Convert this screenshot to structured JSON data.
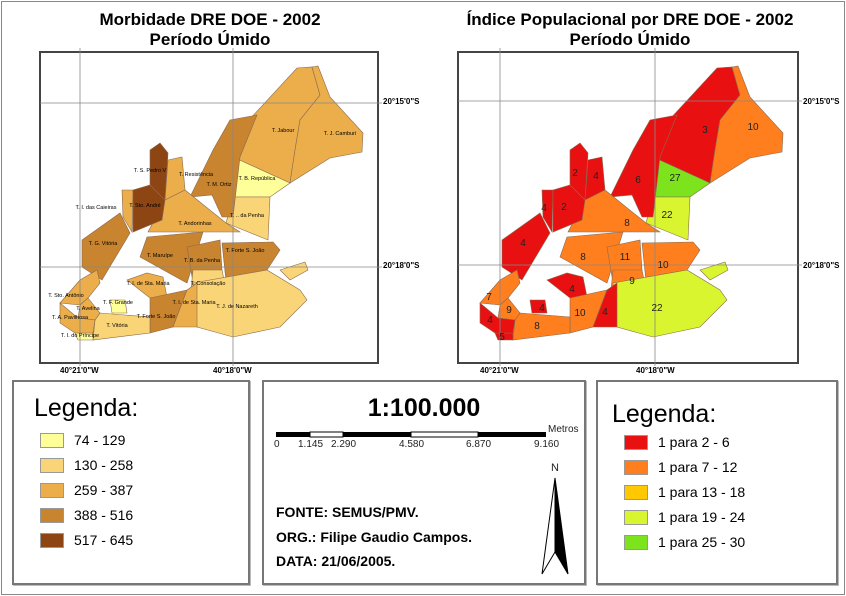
{
  "left_map": {
    "title_line1": "Morbidade DRE DOE - 2002",
    "title_line2": "Período Úmido",
    "coords": {
      "lon1": "40°21'0\"W",
      "lon2": "40°18'0\"W",
      "lat1": "20°15'0\"S",
      "lat2": "20°18'0\"S"
    }
  },
  "right_map": {
    "title_line1": "Índice Populacional por DRE DOE - 2002",
    "title_line2": "Período Úmido",
    "coords": {
      "lon1": "40°21'0\"W",
      "lon2": "40°18'0\"W",
      "lat1": "20°15'0\"S",
      "lat2": "20°18'0\"S"
    }
  },
  "regions": [
    {
      "label": "T. Jabour",
      "morbidity_class": 2,
      "ratio": "3",
      "ratio_class": 0
    },
    {
      "label": "T. J. Camburi",
      "morbidity_class": 2,
      "ratio": "10",
      "ratio_class": 1
    },
    {
      "label": "T. B. República",
      "morbidity_class": 0,
      "ratio": "27",
      "ratio_class": 4
    },
    {
      "label": "T. .. da Penha",
      "morbidity_class": 1,
      "ratio": "22",
      "ratio_class": 3
    },
    {
      "label": "T. M. Ortiz",
      "morbidity_class": 3,
      "ratio": "6",
      "ratio_class": 0
    },
    {
      "label": "T. S. Pedro V",
      "morbidity_class": 4,
      "ratio": "2",
      "ratio_class": 0
    },
    {
      "label": "T. Resistência",
      "morbidity_class": 2,
      "ratio": "4",
      "ratio_class": 0
    },
    {
      "label": "T. I. das Caieiras",
      "morbidity_class": 2,
      "ratio": "4",
      "ratio_class": 0
    },
    {
      "label": "T. G. Vitória",
      "morbidity_class": 3,
      "ratio": "4",
      "ratio_class": 0
    },
    {
      "label": "T. Andorinhas",
      "morbidity_class": 2,
      "ratio": "8",
      "ratio_class": 1
    },
    {
      "label": "T. Maruípe",
      "morbidity_class": 3,
      "ratio": "8",
      "ratio_class": 1
    },
    {
      "label": "T. B. da Penha",
      "morbidity_class": 3,
      "ratio": "11",
      "ratio_class": 1
    },
    {
      "label": "T. Forte S. João",
      "morbidity_class": 3,
      "ratio": "10",
      "ratio_class": 1
    },
    {
      "label": "T. Consolação",
      "morbidity_class": 1,
      "ratio": "9",
      "ratio_class": 1
    },
    {
      "label": "T. J. de Nazareth",
      "morbidity_class": 1,
      "ratio": "22",
      "ratio_class": 3
    },
    {
      "label": "T. I. de Sta. Maria",
      "morbidity_class": 2,
      "ratio": "4",
      "ratio_class": 0
    },
    {
      "label": "T. Forte S. João",
      "morbidity_class": 3,
      "ratio": "10",
      "ratio_class": 1
    },
    {
      "label": "T. I. de Sta. Maria",
      "morbidity_class": 2,
      "ratio": "4",
      "ratio_class": 0
    },
    {
      "label": "T. Sto. Antônio",
      "morbidity_class": 2,
      "ratio": "7",
      "ratio_class": 1
    },
    {
      "label": "T. F. Grande",
      "morbidity_class": 0,
      "ratio": "4",
      "ratio_class": 0
    },
    {
      "label": "T. Vitória",
      "morbidity_class": 1,
      "ratio": "8",
      "ratio_class": 1
    },
    {
      "label": "T. I. do Príncipe",
      "morbidity_class": 0,
      "ratio": "5",
      "ratio_class": 0
    },
    {
      "label": "T. Sto. André",
      "morbidity_class": 4,
      "ratio": "2",
      "ratio_class": 0
    },
    {
      "label": "T. Avelina",
      "morbidity_class": 2,
      "ratio": "9",
      "ratio_class": 1
    },
    {
      "label": "T. A. Pavilhosa",
      "morbidity_class": 2,
      "ratio": "4",
      "ratio_class": 0
    }
  ],
  "left_legend": {
    "title": "Legenda:",
    "items": [
      {
        "label": "74 - 129",
        "color": "#FFFF99"
      },
      {
        "label": "130 - 258",
        "color": "#F9D577"
      },
      {
        "label": "259 - 387",
        "color": "#EBAE4B"
      },
      {
        "label": "388 - 516",
        "color": "#C8842F"
      },
      {
        "label": "517 - 645",
        "color": "#8E4514"
      }
    ]
  },
  "right_legend": {
    "title": "Legenda:",
    "items": [
      {
        "label": "1 para 2 - 6",
        "color": "#E81010"
      },
      {
        "label": "1 para 7 - 12",
        "color": "#FF7F1E"
      },
      {
        "label": "1 para 13 - 18",
        "color": "#FFC800"
      },
      {
        "label": "1 para 19 - 24",
        "color": "#D8F530"
      },
      {
        "label": "1 para 25 - 30",
        "color": "#7CE31C"
      }
    ]
  },
  "scale": {
    "title": "1:100.000",
    "unit": "Metros",
    "ticks": [
      "0",
      "1.145",
      "2.290",
      "4.580",
      "6.870",
      "9.160"
    ]
  },
  "info": {
    "source": "FONTE: SEMUS/PMV.",
    "org": "ORG.: Filipe Gaudio Campos.",
    "date": "DATA: 21/06/2005."
  },
  "north_arrow": {
    "label": "N"
  }
}
